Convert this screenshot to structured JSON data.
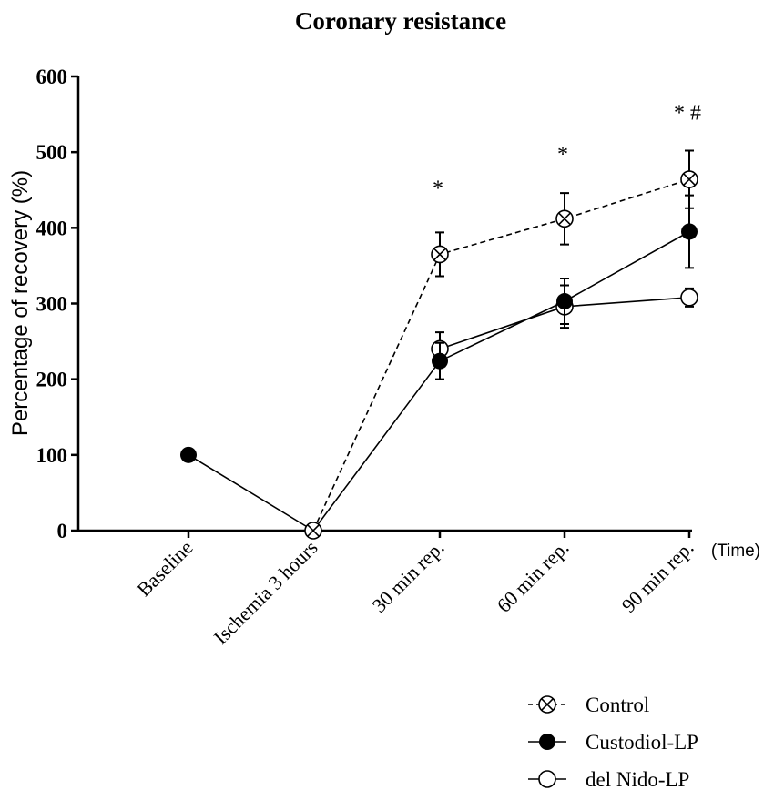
{
  "chart_data": {
    "type": "line",
    "title": "Coronary resistance",
    "ylabel": "Percentage of recovery (%)",
    "xlabel": "(Time)",
    "categories": [
      "Baseline",
      "Ischemia 3 hours",
      "30 min rep.",
      "60 min rep.",
      "90 min rep."
    ],
    "ylim": [
      0,
      600
    ],
    "yticks": [
      0,
      100,
      200,
      300,
      400,
      500,
      600
    ],
    "grid": false,
    "legend_position": "bottom-right",
    "series": [
      {
        "name": "Control",
        "marker": "circle-x",
        "line": "dashed",
        "values": [
          null,
          0,
          365,
          412,
          464
        ],
        "errors": [
          null,
          0,
          29,
          34,
          38
        ]
      },
      {
        "name": "Custodiol-LP",
        "marker": "filled-circle",
        "line": "solid",
        "values": [
          100,
          0,
          224,
          303,
          395
        ],
        "errors": [
          0,
          0,
          24,
          30,
          48
        ]
      },
      {
        "name": "del Nido-LP",
        "marker": "open-circle",
        "line": "solid",
        "values": [
          null,
          null,
          240,
          296,
          308
        ],
        "errors": [
          null,
          null,
          22,
          28,
          12
        ]
      }
    ],
    "annotations": [
      {
        "category": "30 min rep.",
        "text": "*",
        "y": 455
      },
      {
        "category": "60 min rep.",
        "text": "*",
        "y": 500
      },
      {
        "category": "90 min rep.",
        "text": "* #",
        "y": 555
      }
    ]
  }
}
